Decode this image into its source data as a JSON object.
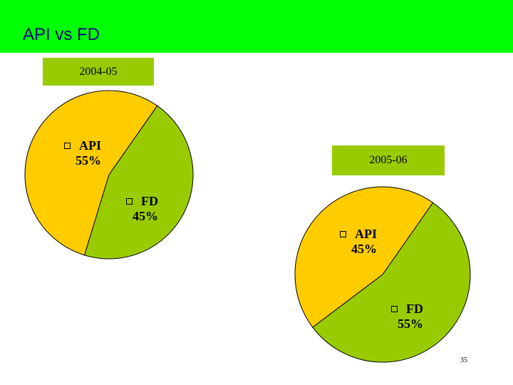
{
  "slide": {
    "title": "API vs FD",
    "page_number": "35"
  },
  "colors": {
    "title_bar": "#00ff00",
    "title_text": "#000080",
    "label_bg": "#99cc00",
    "api": "#ffcc00",
    "fd": "#99cc00"
  },
  "chart_data": [
    {
      "type": "pie",
      "title": "2004-05",
      "slices": [
        {
          "label": "API",
          "value": 55,
          "display": "55%",
          "color": "#ffcc00"
        },
        {
          "label": "FD",
          "value": 45,
          "display": "45%",
          "color": "#99cc00"
        }
      ]
    },
    {
      "type": "pie",
      "title": "2005-06",
      "slices": [
        {
          "label": "API",
          "value": 45,
          "display": "45%",
          "color": "#ffcc00"
        },
        {
          "label": "FD",
          "value": 55,
          "display": "55%",
          "color": "#99cc00"
        }
      ]
    }
  ]
}
